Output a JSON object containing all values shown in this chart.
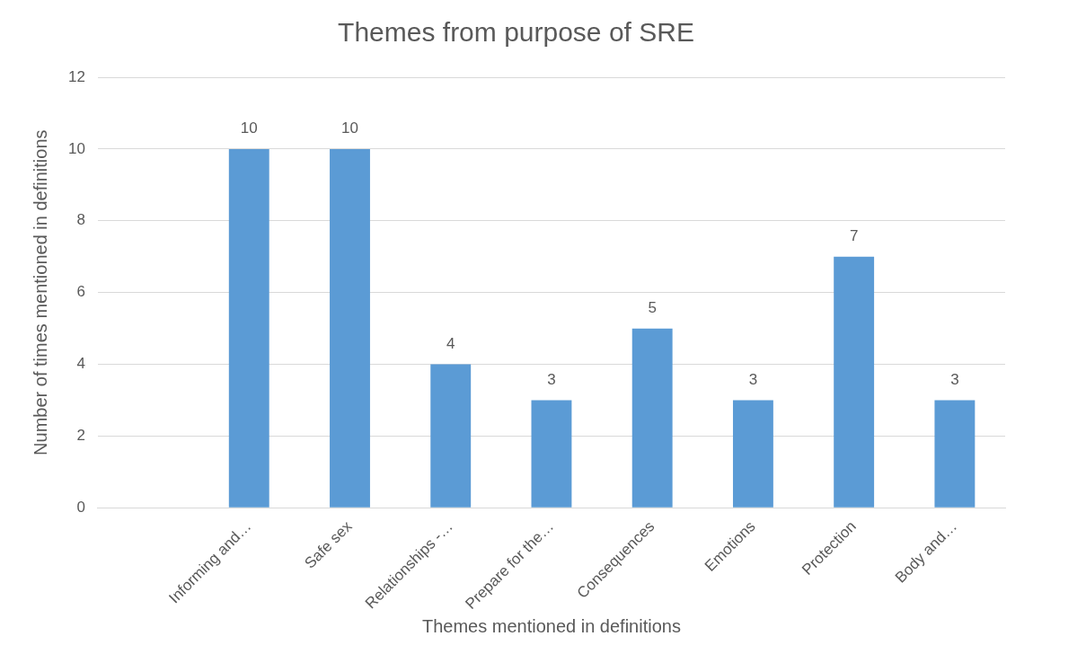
{
  "chart_data": {
    "type": "bar",
    "title": "Themes from purpose of SRE",
    "xlabel": "Themes mentioned in definitions",
    "ylabel": "Number of times mentioned in definitions",
    "categories": [
      null,
      "Informing and…",
      "Safe sex",
      "Relationships -…",
      "Prepare for the…",
      "Consequences",
      "Emotions",
      "Protection",
      "Body and…"
    ],
    "values": [
      null,
      10,
      10,
      4,
      3,
      5,
      3,
      7,
      3
    ],
    "color": "#5b9bd5",
    "ylim": [
      0,
      12
    ],
    "yticks": [
      0,
      2,
      4,
      6,
      8,
      10,
      12
    ],
    "grid": "y",
    "data_labels": true,
    "legend": false
  }
}
